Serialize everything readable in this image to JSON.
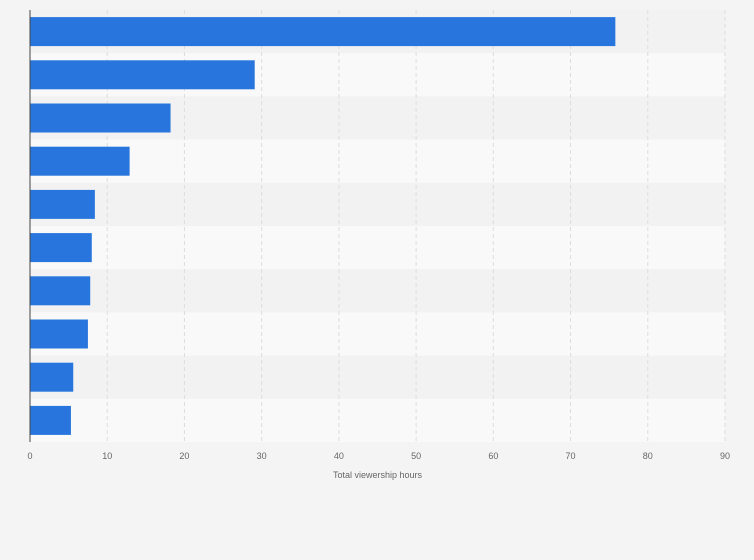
{
  "chart_data": {
    "type": "bar",
    "orientation": "horizontal",
    "categories": [
      "",
      "",
      "",
      "",
      "",
      "",
      "",
      "",
      "",
      ""
    ],
    "values": [
      75.8,
      29.1,
      18.2,
      12.9,
      8.4,
      8.0,
      7.8,
      7.5,
      5.6,
      5.3
    ],
    "title": "",
    "xlabel": "Total viewership hours",
    "ylabel": "",
    "xlim": [
      0,
      90
    ],
    "xticks": [
      0,
      10,
      20,
      30,
      40,
      50,
      60,
      70,
      80,
      90
    ],
    "grid": true,
    "legend": "none",
    "colors": {
      "bar": "#2876dd",
      "band_light": "#f9f9f9",
      "band_dark": "#f2f2f2",
      "grid": "#dddddd",
      "axis": "#444444"
    }
  }
}
